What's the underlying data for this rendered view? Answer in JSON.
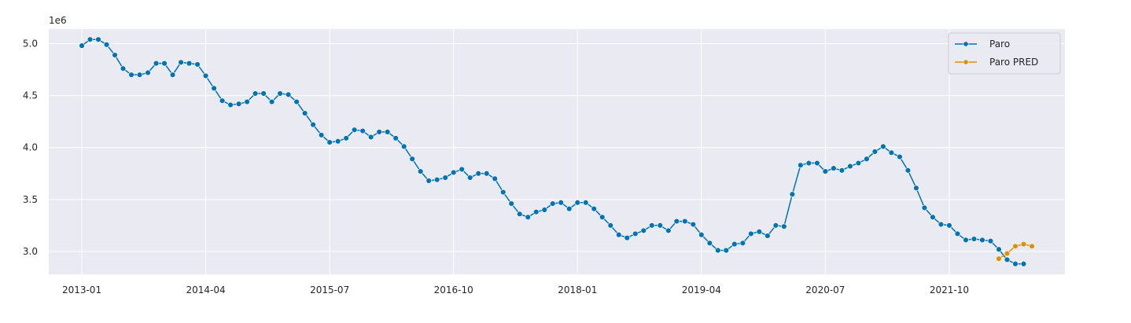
{
  "chart_data": {
    "type": "line",
    "ylim": [
      2.78,
      5.14
    ],
    "y_offset_label": "1e6",
    "y_ticks": [
      3.0,
      3.5,
      4.0,
      4.5,
      5.0
    ],
    "y_tick_labels": [
      "3.0",
      "3.5",
      "4.0",
      "4.5",
      "5.0"
    ],
    "x_ticks": [
      "2013-01",
      "2014-04",
      "2015-07",
      "2016-10",
      "2018-01",
      "2019-04",
      "2020-07",
      "2021-10"
    ],
    "x_range": [
      "2012-09",
      "2022-12"
    ],
    "grid": true,
    "legend_position": "top-right",
    "colors": {
      "background": "#eaeaf2",
      "grid": "#ffffff",
      "paro": "#0173b2",
      "paro_pred": "#de8f05"
    },
    "series": [
      {
        "name": "Paro",
        "start": "2013-01",
        "values": [
          4.98,
          5.04,
          5.04,
          4.99,
          4.89,
          4.76,
          4.7,
          4.7,
          4.72,
          4.81,
          4.81,
          4.7,
          4.82,
          4.81,
          4.8,
          4.69,
          4.57,
          4.45,
          4.41,
          4.42,
          4.44,
          4.52,
          4.52,
          4.44,
          4.52,
          4.51,
          4.44,
          4.33,
          4.22,
          4.12,
          4.05,
          4.06,
          4.09,
          4.17,
          4.16,
          4.1,
          4.15,
          4.15,
          4.09,
          4.01,
          3.89,
          3.77,
          3.68,
          3.69,
          3.71,
          3.76,
          3.79,
          3.71,
          3.75,
          3.75,
          3.7,
          3.57,
          3.46,
          3.36,
          3.33,
          3.38,
          3.4,
          3.46,
          3.47,
          3.41,
          3.47,
          3.47,
          3.41,
          3.33,
          3.25,
          3.16,
          3.13,
          3.17,
          3.2,
          3.25,
          3.25,
          3.2,
          3.29,
          3.29,
          3.26,
          3.16,
          3.08,
          3.01,
          3.01,
          3.07,
          3.08,
          3.17,
          3.19,
          3.15,
          3.25,
          3.24,
          3.55,
          3.83,
          3.85,
          3.85,
          3.77,
          3.8,
          3.78,
          3.82,
          3.85,
          3.89,
          3.96,
          4.01,
          3.95,
          3.91,
          3.78,
          3.61,
          3.42,
          3.33,
          3.26,
          3.25,
          3.17,
          3.11,
          3.12,
          3.11,
          3.1,
          3.02,
          2.92,
          2.88,
          2.88
        ]
      },
      {
        "name": "Paro PRED",
        "start": "2022-04",
        "values": [
          2.93,
          2.98,
          3.05,
          3.07,
          3.05
        ]
      }
    ]
  }
}
